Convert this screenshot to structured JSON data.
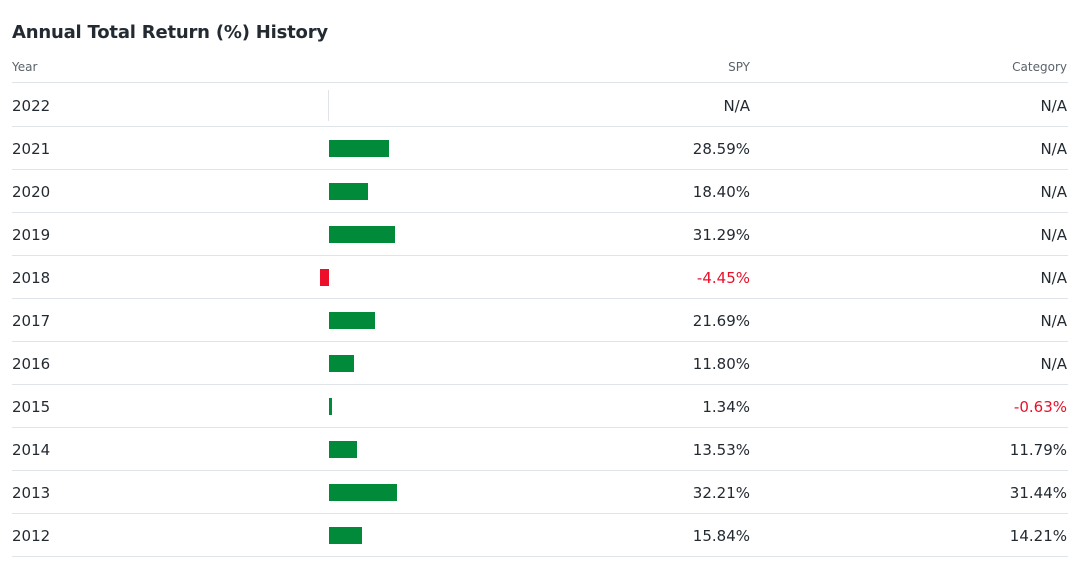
{
  "title": "Annual Total Return (%) History",
  "columns": {
    "year": "Year",
    "spy": "SPY",
    "category": "Category"
  },
  "colors": {
    "positive_bar": "#008a3a",
    "negative": "#eb0f29",
    "text": "#232a31",
    "muted": "#5b636a",
    "divider": "#e0e4e9"
  },
  "rows": [
    {
      "year": "2022",
      "spy": "N/A",
      "category": "N/A"
    },
    {
      "year": "2021",
      "spy": "28.59%",
      "category": "N/A"
    },
    {
      "year": "2020",
      "spy": "18.40%",
      "category": "N/A"
    },
    {
      "year": "2019",
      "spy": "31.29%",
      "category": "N/A"
    },
    {
      "year": "2018",
      "spy": "-4.45%",
      "category": "N/A"
    },
    {
      "year": "2017",
      "spy": "21.69%",
      "category": "N/A"
    },
    {
      "year": "2016",
      "spy": "11.80%",
      "category": "N/A"
    },
    {
      "year": "2015",
      "spy": "1.34%",
      "category": "-0.63%"
    },
    {
      "year": "2014",
      "spy": "13.53%",
      "category": "11.79%"
    },
    {
      "year": "2013",
      "spy": "32.21%",
      "category": "31.44%"
    },
    {
      "year": "2012",
      "spy": "15.84%",
      "category": "14.21%"
    }
  ],
  "chart_data": {
    "type": "bar",
    "categories": [
      "2022",
      "2021",
      "2020",
      "2019",
      "2018",
      "2017",
      "2016",
      "2015",
      "2014",
      "2013",
      "2012"
    ],
    "series": [
      {
        "name": "SPY",
        "values": [
          null,
          28.59,
          18.4,
          31.29,
          -4.45,
          21.69,
          11.8,
          1.34,
          13.53,
          32.21,
          15.84
        ]
      },
      {
        "name": "Category",
        "values": [
          null,
          null,
          null,
          null,
          null,
          null,
          null,
          -0.63,
          11.79,
          31.44,
          14.21
        ]
      }
    ],
    "title": "Annual Total Return (%) History",
    "xlabel": "",
    "ylabel": ""
  }
}
